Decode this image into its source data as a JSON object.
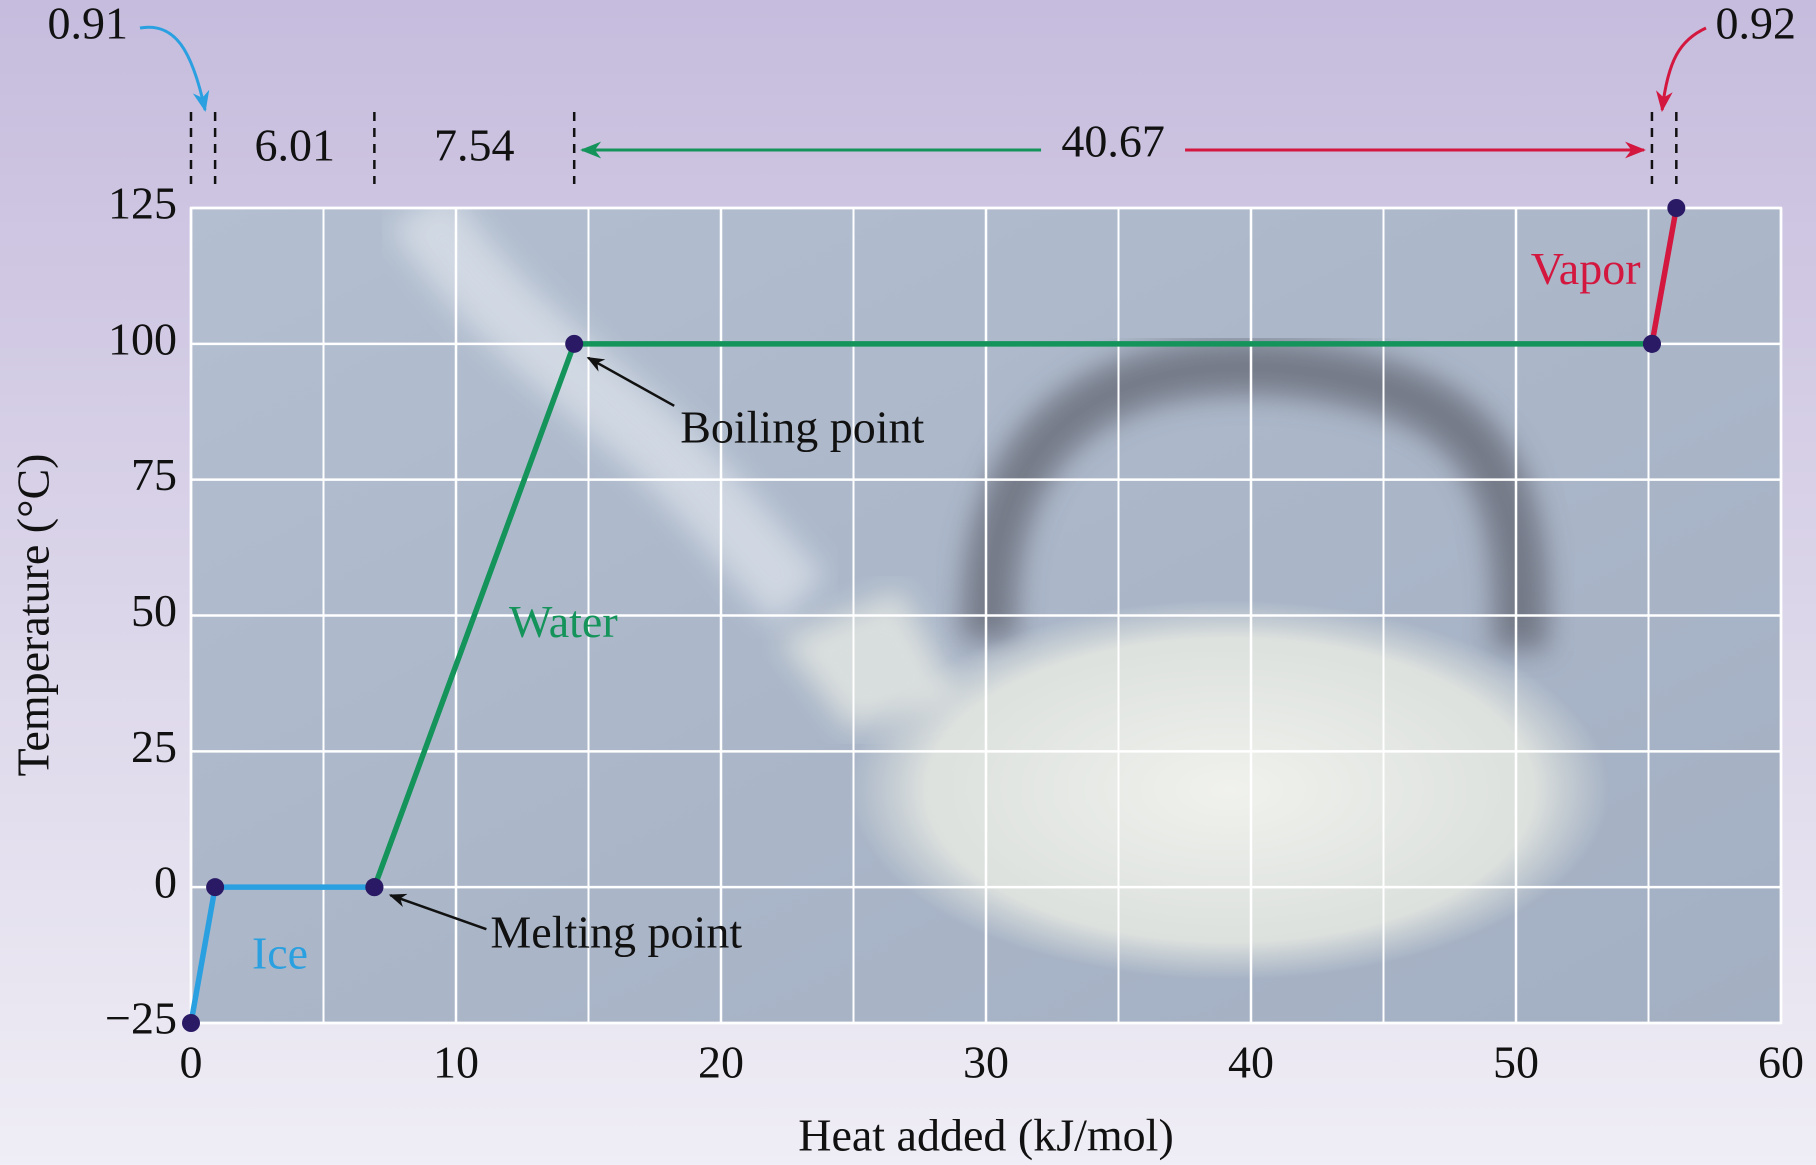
{
  "chart_data": {
    "type": "line",
    "x_label": "Heat added (kJ/mol)",
    "y_label": "Temperature (°C)",
    "xlim": [
      0,
      60
    ],
    "xticks": [
      0,
      10,
      20,
      30,
      40,
      50,
      60
    ],
    "ylim": [
      -25,
      125
    ],
    "yticks": [
      {
        "value": -25,
        "label": "−25"
      },
      0,
      25,
      50,
      75,
      100,
      125
    ],
    "grid": true,
    "series": [
      {
        "name": "Ice",
        "color": "#2aa0e0",
        "x": [
          0,
          0.91,
          6.92
        ],
        "values": [
          -25,
          0,
          0
        ]
      },
      {
        "name": "Water",
        "color": "#14945a",
        "x": [
          6.92,
          14.46,
          55.13
        ],
        "values": [
          0,
          100,
          100
        ]
      },
      {
        "name": "Vapor",
        "color": "#d3173f",
        "x": [
          55.13,
          56.05
        ],
        "values": [
          100,
          125
        ]
      }
    ],
    "intervals": [
      0.91,
      6.01,
      7.54,
      40.67,
      0.92
    ],
    "annotations": [
      "Boiling point",
      "Melting point"
    ],
    "point_color": "#2a1a66"
  }
}
